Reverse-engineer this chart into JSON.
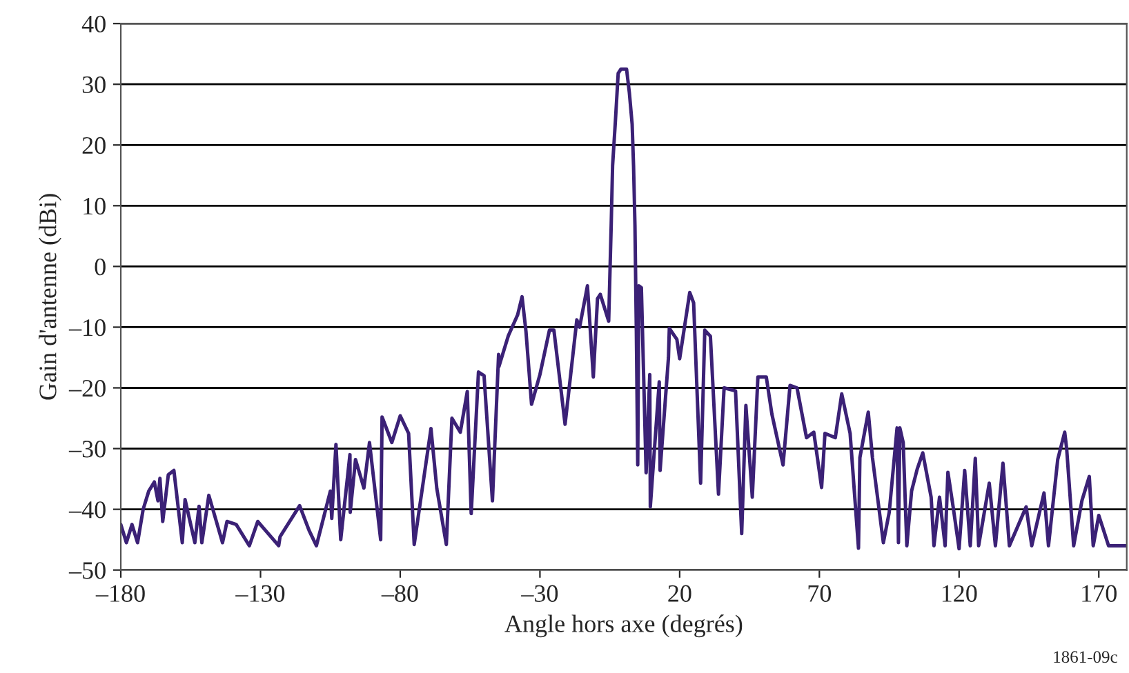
{
  "chart_data": {
    "type": "line",
    "xlabel": "Angle hors axe (degrés)",
    "ylabel": "Gain d'antenne (dBi)",
    "annotations": [
      "1861-09c"
    ],
    "xlim": [
      -180,
      180
    ],
    "xticks": [
      {
        "value": -180,
        "label": "–180"
      },
      {
        "value": -130,
        "label": "–130"
      },
      {
        "value": -80,
        "label": "–80"
      },
      {
        "value": -30,
        "label": "–30"
      },
      20,
      70,
      120,
      170
    ],
    "ylim": [
      -50,
      40
    ],
    "yticks": [
      {
        "value": -50,
        "label": "–50"
      },
      {
        "value": -40,
        "label": "–40"
      },
      {
        "value": -30,
        "label": "–30"
      },
      {
        "value": -20,
        "label": "–20"
      },
      {
        "value": -10,
        "label": "–10"
      },
      0,
      10,
      20,
      30,
      40
    ],
    "grid": "y",
    "legend": false,
    "series": [
      {
        "color": "#3b2176",
        "x": [
          -180,
          -178,
          -176,
          -174,
          -172,
          -170,
          -168,
          -166.7,
          -166,
          -165,
          -163,
          -161,
          -158,
          -157,
          -153.5,
          -152,
          -151,
          -148.5,
          -143.6,
          -142,
          -138.7,
          -134,
          -131,
          -123.5,
          -123,
          -116,
          -112.6,
          -110,
          -105,
          -104.5,
          -103,
          -101.3,
          -98,
          -97.9,
          -96,
          -93,
          -91,
          -87,
          -86.5,
          -83,
          -80,
          -77,
          -75,
          -69,
          -66.9,
          -63.5,
          -61.5,
          -58.5,
          -56,
          -54.6,
          -52,
          -50,
          -47,
          -44.8,
          -44.7,
          -41.3,
          -38,
          -36.4,
          -35,
          -33,
          -30,
          -26.6,
          -25,
          -21,
          -19,
          -16.8,
          -15.8,
          -13,
          -10.9,
          -9.4,
          -8.4,
          -5.4,
          -4.5,
          -4,
          -3,
          -2,
          -1,
          1,
          2,
          3,
          3.5,
          4,
          4.5,
          5,
          5.4,
          6.3,
          8,
          9.3,
          9.5,
          12.7,
          13,
          16,
          16.3,
          19,
          20,
          23.6,
          25,
          27.5,
          29,
          31,
          33.9,
          35.9,
          40,
          42.2,
          43.7,
          46,
          48,
          51,
          53,
          57,
          59.5,
          62,
          65.4,
          68,
          70.8,
          72,
          75.7,
          78,
          81,
          84,
          84.5,
          87.5,
          89,
          92.9,
          95,
          97.8,
          98.3,
          98.8,
          100,
          101.3,
          103,
          105,
          107,
          110,
          111,
          113,
          115,
          116,
          118,
          120,
          122,
          124,
          125.8,
          127,
          130.8,
          133,
          135.7,
          138,
          144,
          146,
          150.4,
          152,
          155.3,
          157.8,
          158.5,
          161,
          164,
          166.6,
          168,
          170,
          173.5,
          177.5,
          180
        ],
        "values": [
          -42.5,
          -45.5,
          -42.5,
          -45.5,
          -40,
          -37,
          -35.5,
          -38.6,
          -34.9,
          -42,
          -34.3,
          -33.6,
          -45.5,
          -38.4,
          -45.5,
          -39.5,
          -45.5,
          -37.7,
          -45.5,
          -42,
          -42.5,
          -46,
          -42,
          -46,
          -44.5,
          -39.4,
          -43.5,
          -46,
          -37,
          -41.5,
          -29.3,
          -45,
          -31,
          -40.5,
          -31.8,
          -36.5,
          -29,
          -45,
          -24.8,
          -29,
          -24.6,
          -27.5,
          -45.8,
          -26.7,
          -36.6,
          -45.8,
          -25,
          -27.3,
          -20.6,
          -40.7,
          -17.4,
          -18,
          -38.6,
          -14.5,
          -16.5,
          -11.4,
          -8,
          -5,
          -10.7,
          -22.7,
          -17.8,
          -10.5,
          -10.5,
          -26,
          -17.8,
          -8.8,
          -10,
          -3.2,
          -18.2,
          -5.3,
          -4.6,
          -9,
          6.8,
          16.6,
          23.9,
          31.8,
          32.5,
          32.5,
          28.6,
          23.4,
          16.6,
          6.8,
          -10.7,
          -32.7,
          -3.2,
          -3.5,
          -34,
          -17.8,
          -39.6,
          -19,
          -33.6,
          -15,
          -10.2,
          -12,
          -15.2,
          -4.3,
          -6,
          -35.7,
          -10.5,
          -11.5,
          -37.5,
          -20,
          -20.5,
          -44,
          -22.9,
          -38,
          -18.2,
          -18.2,
          -24.3,
          -32.7,
          -19.6,
          -20,
          -28.2,
          -27.3,
          -36.4,
          -27.5,
          -28.2,
          -21,
          -27.5,
          -46.4,
          -31.5,
          -24,
          -31.5,
          -45.5,
          -40.5,
          -26.6,
          -45.5,
          -26.6,
          -29,
          -46,
          -37,
          -33.4,
          -30.7,
          -38,
          -46,
          -38,
          -46,
          -33.9,
          -40,
          -46.5,
          -33.6,
          -46,
          -31.6,
          -46,
          -35.7,
          -46,
          -32.4,
          -46,
          -39.6,
          -46,
          -37.3,
          -46,
          -31.8,
          -27.3,
          -30,
          -46,
          -38.5,
          -34.6,
          -46,
          -41,
          -46,
          -46,
          -46
        ]
      }
    ]
  }
}
